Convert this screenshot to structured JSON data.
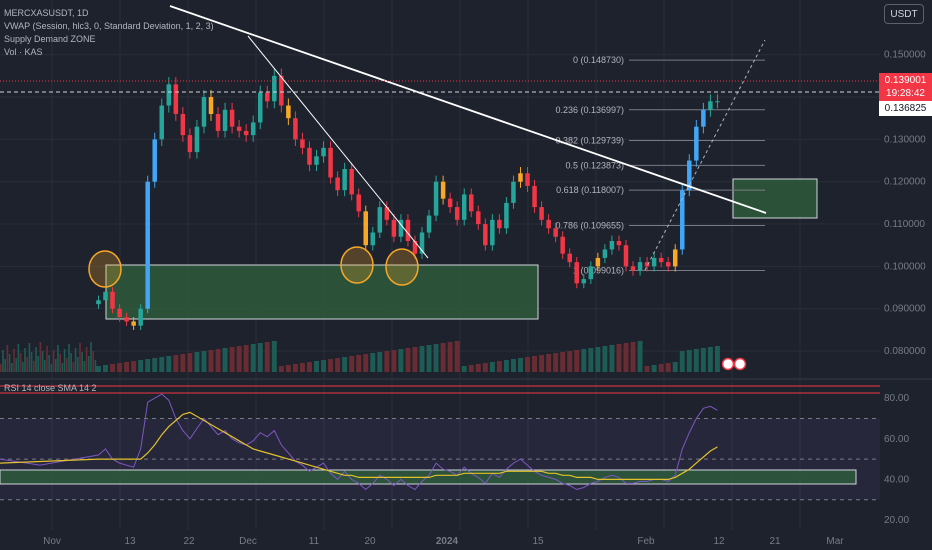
{
  "legend": {
    "symbol": "MERCXASUSDT, 1D",
    "vwap": "VWAP (Session, hlc3, 0, Standard Deviation, 1, 2, 3)",
    "supply_demand": "Supply Demand ZONE",
    "vol": "Vol · KAS"
  },
  "currency_button": "USDT",
  "last_price": "0.139001",
  "countdown": "19:28:42",
  "crosshair_price": "0.136825",
  "rsi_label": "RSI 14 close SMA 14 2",
  "price_axis": [
    "0.150000",
    "0.140000",
    "0.130000",
    "0.120000",
    "0.110000",
    "0.100000",
    "0.090000",
    "0.080000"
  ],
  "rsi_axis": [
    "80.00",
    "60.00",
    "40.00",
    "20.00"
  ],
  "time_axis": [
    "Nov",
    "13",
    "22",
    "Dec",
    "11",
    "20",
    "2024",
    "15",
    "Feb",
    "12",
    "21",
    "Mar"
  ],
  "fib_levels": [
    {
      "label": "0 (0.148730)",
      "price": 0.14873
    },
    {
      "label": "0.236 (0.136997)",
      "price": 0.136997
    },
    {
      "label": "0.382 (0.129739)",
      "price": 0.129739
    },
    {
      "label": "0.5 (0.123873)",
      "price": 0.123873
    },
    {
      "label": "0.618 (0.118007)",
      "price": 0.118007
    },
    {
      "label": "0.786 (0.109655)",
      "price": 0.109655
    },
    {
      "label": "1 (0.099016)",
      "price": 0.099016
    }
  ],
  "colors": {
    "up": "#26a69a",
    "down": "#f23645",
    "vwap_up": "#42a5f5",
    "neutral": "#f9a825",
    "zone_fill": "#2e5b3b",
    "rsi": "#7e57c2",
    "rsi_sma": "#e1c12b",
    "background": "#1e222d"
  },
  "chart_data": {
    "type": "candlestick",
    "y_range": [
      0.076,
      0.153
    ],
    "rsi_range": [
      20,
      85
    ],
    "series_close": [
      0.092,
      0.094,
      0.09,
      0.088,
      0.087,
      0.086,
      0.09,
      0.12,
      0.13,
      0.138,
      0.143,
      0.136,
      0.131,
      0.127,
      0.133,
      0.14,
      0.136,
      0.132,
      0.137,
      0.133,
      0.132,
      0.131,
      0.134,
      0.141,
      0.139,
      0.145,
      0.138,
      0.135,
      0.13,
      0.128,
      0.124,
      0.126,
      0.128,
      0.121,
      0.118,
      0.123,
      0.117,
      0.113,
      0.105,
      0.108,
      0.114,
      0.111,
      0.107,
      0.111,
      0.106,
      0.103,
      0.108,
      0.112,
      0.12,
      0.116,
      0.114,
      0.111,
      0.117,
      0.113,
      0.11,
      0.105,
      0.111,
      0.109,
      0.115,
      0.12,
      0.122,
      0.119,
      0.114,
      0.111,
      0.109,
      0.107,
      0.103,
      0.101,
      0.096,
      0.097,
      0.1,
      0.102,
      0.104,
      0.106,
      0.105,
      0.1,
      0.099,
      0.101,
      0.1,
      0.102,
      0.101,
      0.1,
      0.104,
      0.118,
      0.125,
      0.133,
      0.137,
      0.139,
      0.139
    ],
    "rsi": [
      52,
      55,
      50,
      48,
      47,
      46,
      55,
      78,
      80,
      82,
      79,
      70,
      64,
      60,
      65,
      70,
      66,
      62,
      64,
      60,
      58,
      57,
      59,
      63,
      61,
      64,
      57,
      53,
      49,
      47,
      44,
      46,
      48,
      43,
      40,
      44,
      40,
      38,
      35,
      38,
      42,
      40,
      37,
      40,
      37,
      35,
      39,
      42,
      48,
      45,
      44,
      42,
      46,
      43,
      41,
      38,
      43,
      41,
      45,
      48,
      50,
      47,
      44,
      42,
      41,
      40,
      38,
      37,
      35,
      36,
      38,
      39,
      41,
      42,
      41,
      38,
      38,
      39,
      39,
      40,
      40,
      39,
      42,
      55,
      63,
      70,
      75,
      76,
      74
    ],
    "rsi_sma": [
      50,
      50,
      50,
      50,
      50,
      50,
      50,
      53,
      57,
      62,
      66,
      69,
      72,
      73,
      71,
      69,
      67,
      65,
      63,
      61,
      59,
      57,
      55,
      54,
      53,
      52,
      51,
      50,
      49,
      48,
      47,
      46,
      45,
      44,
      43,
      42,
      42,
      41,
      41,
      41,
      41,
      41,
      41,
      41,
      41,
      41,
      41,
      41,
      42,
      42,
      42,
      42,
      43,
      43,
      43,
      43,
      43,
      43,
      44,
      44,
      44,
      44,
      44,
      44,
      43,
      43,
      42,
      42,
      41,
      41,
      41,
      40,
      40,
      40,
      40,
      40,
      40,
      40,
      40,
      40,
      40,
      40,
      41,
      43,
      45,
      48,
      51,
      54,
      56
    ]
  }
}
